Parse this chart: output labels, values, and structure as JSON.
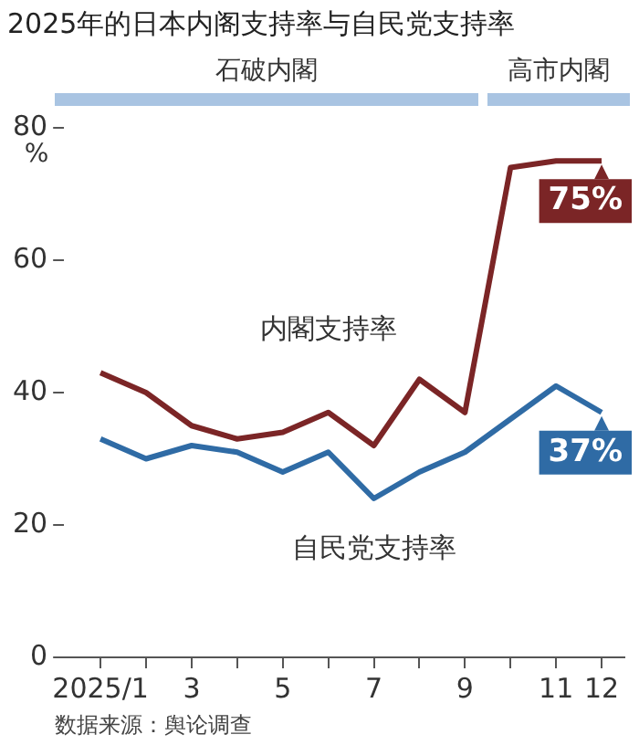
{
  "chart_data": {
    "type": "line",
    "title": "2025年的日本内阁支持率与自民党支持率",
    "ylabel": "%",
    "x": [
      1,
      2,
      3,
      4,
      5,
      6,
      7,
      8,
      9,
      10,
      11,
      12
    ],
    "series": [
      {
        "name": "内閣支持率",
        "color": "#7b2526",
        "values": [
          43,
          40,
          35,
          33,
          34,
          37,
          32,
          42,
          37,
          74,
          75,
          75
        ],
        "value_labels": [
          null,
          null,
          null,
          null,
          null,
          null,
          null,
          null,
          null,
          null,
          null,
          "75%"
        ]
      },
      {
        "name": "自民党支持率",
        "color": "#2f6ba5",
        "values": [
          33,
          30,
          32,
          31,
          28,
          31,
          24,
          28,
          31,
          36,
          41,
          37
        ],
        "value_labels": [
          null,
          null,
          null,
          null,
          null,
          null,
          null,
          null,
          null,
          null,
          null,
          "37%"
        ]
      }
    ],
    "xlim": [
      0.2,
      12.5
    ],
    "xticks": [
      {
        "value": 1,
        "label": "2025/1"
      },
      {
        "value": 2,
        "label": null
      },
      3,
      {
        "value": 4,
        "label": null
      },
      5,
      {
        "value": 6,
        "label": null
      },
      7,
      {
        "value": 8,
        "label": null
      },
      9,
      {
        "value": 10,
        "label": null
      },
      11,
      12
    ],
    "ylim": [
      0,
      80
    ],
    "yticks": [
      0,
      20,
      40,
      60,
      80
    ],
    "annotations": [
      "石破内閣",
      "高市内閣",
      "数据来源：舆论调查"
    ],
    "grid": false,
    "legend": false,
    "marker": "none",
    "line_style": "solid"
  }
}
